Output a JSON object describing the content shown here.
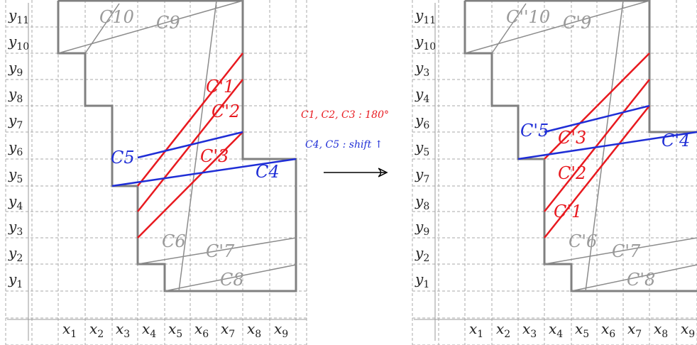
{
  "left_panel": {
    "y_labels": [
      "y1",
      "y2",
      "y3",
      "y4",
      "y5",
      "y6",
      "y7",
      "y8",
      "y9",
      "y10",
      "y11"
    ],
    "x_labels": [
      "x1",
      "x2",
      "x3",
      "x4",
      "x5",
      "x6",
      "x7",
      "x8",
      "x9"
    ],
    "curve_labels": {
      "c1": "C'1",
      "c2": "C'2",
      "c3": "C'3",
      "c4": "C4",
      "c5": "C5",
      "c6": "C6",
      "c7": "C'7",
      "c8": "C8",
      "c9": "C9",
      "c10": "C10"
    }
  },
  "right_panel": {
    "y_labels": [
      "y1",
      "y2",
      "y9",
      "y8",
      "y7",
      "y5",
      "y6",
      "y4",
      "y3",
      "y10",
      "y11"
    ],
    "x_labels": [
      "x1",
      "x2",
      "x3",
      "x4",
      "x5",
      "x6",
      "x7",
      "x8",
      "x9"
    ],
    "curve_labels": {
      "c1": "C'1",
      "c2": "C'2",
      "c3": "C'3",
      "c4": "C'4",
      "c5": "C'5",
      "c6": "C'6",
      "c7": "C'7",
      "c8": "C'8",
      "c9": "C'9",
      "c10": "C''10"
    }
  },
  "middle": {
    "red_note": "C1, C2, C3 : 180°",
    "blue_note": "C4, C5 : shift ↑"
  },
  "colors": {
    "red": "#e8191f",
    "blue": "#1f2ed6",
    "gray": "#8c8c8c",
    "green": "#2ca02c",
    "grid": "#aaaaaa",
    "outline": "#808080"
  }
}
